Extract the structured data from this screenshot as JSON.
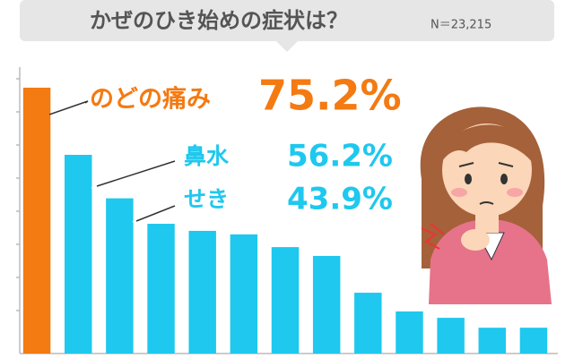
{
  "chart_data": {
    "type": "bar",
    "title": "かぜのひき始めの症状は？",
    "note": "N＝23,215",
    "categories": [
      "のどの痛み",
      "鼻水",
      "せき",
      null,
      null,
      null,
      null,
      null,
      null,
      null,
      null,
      null,
      null
    ],
    "values": [
      75.2,
      56.2,
      43.9,
      36.7,
      34.7,
      33.7,
      30.1,
      27.6,
      17.2,
      11.9,
      10.1,
      7.3,
      7.3
    ],
    "value_labels": [
      "75.2%",
      "56.2%",
      "43.9%",
      null,
      null,
      null,
      null,
      null,
      null,
      null,
      null,
      null,
      null
    ],
    "colors": [
      "#f47a12",
      "#1ec8ee",
      "#1ec8ee",
      "#1ec8ee",
      "#1ec8ee",
      "#1ec8ee",
      "#1ec8ee",
      "#1ec8ee",
      "#1ec8ee",
      "#1ec8ee",
      "#1ec8ee",
      "#1ec8ee",
      "#1ec8ee"
    ],
    "ylim": [
      0,
      80
    ]
  }
}
